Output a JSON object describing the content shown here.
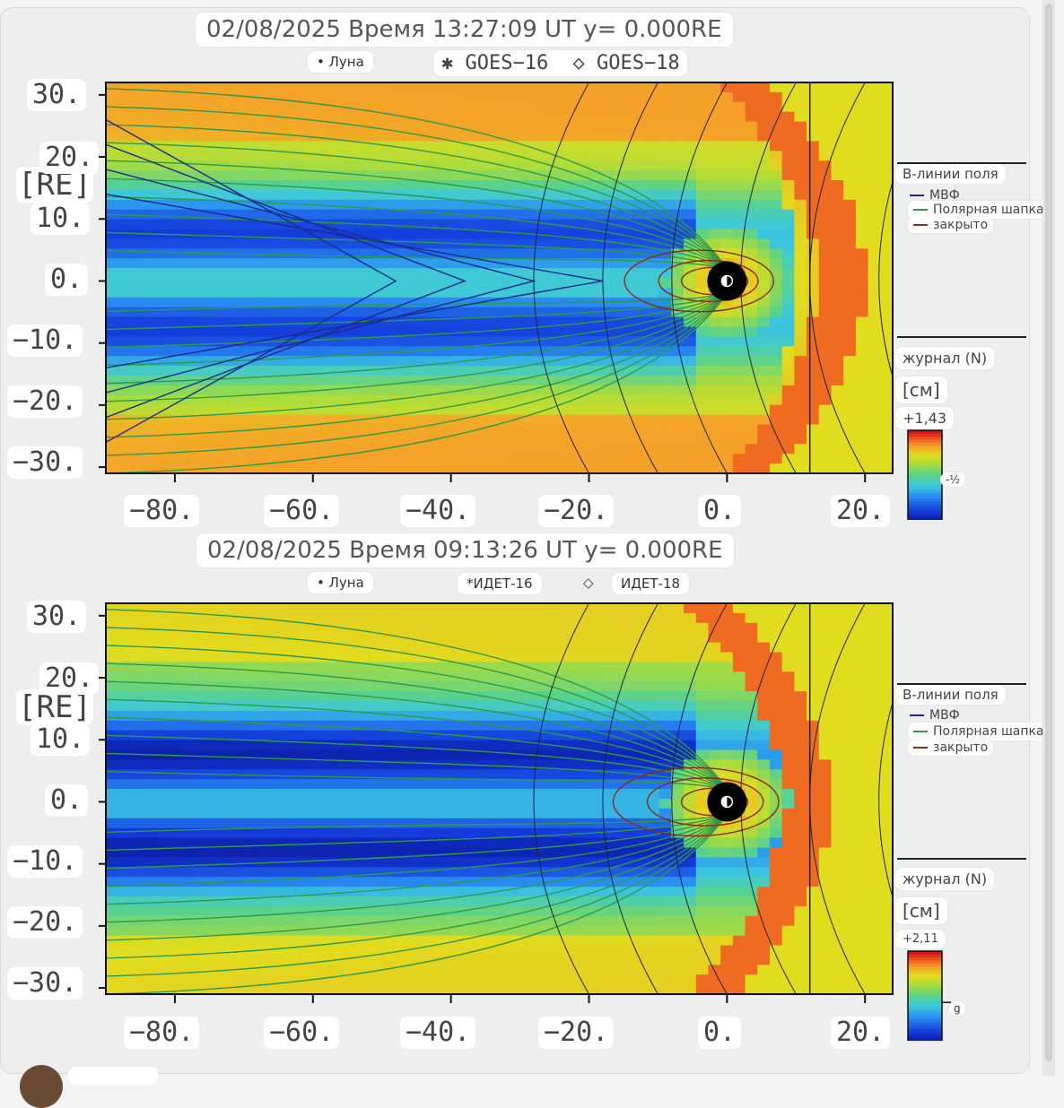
{
  "ui": {
    "scrollbar": "vertical-scrollbar"
  },
  "chart_data": [
    {
      "type": "heatmap",
      "title": "02/08/2025 Время 13:27:09 UT y= 0.000RE",
      "markers": {
        "moon": "• Луна",
        "goes16": "✱ GOES−16",
        "goes18": "◇ GOES−18"
      },
      "xlabel": "",
      "ylabel": "[RE]",
      "x_ticks": [
        "−80.",
        "−60.",
        "−40.",
        "−20.",
        "0.",
        "20."
      ],
      "y_ticks": [
        "30.",
        "20.",
        "10.",
        "0.",
        "−10.",
        "−20.",
        "−30."
      ],
      "xlim": [
        -90,
        24
      ],
      "ylim": [
        -31,
        32
      ],
      "legend": {
        "title": "B-линии поля",
        "items": [
          {
            "label": "МВФ",
            "color": "#1c2a8c"
          },
          {
            "label": "Полярная шапка",
            "color": "#2e9a4a"
          },
          {
            "label": "закрыто",
            "color": "#8c2a1c"
          }
        ]
      },
      "colorbar": {
        "label": "журнал (N)",
        "unit": "[см]",
        "max": "+1,43",
        "mid": "-½"
      },
      "field": {
        "magnetopause_nose_x": 10,
        "bow_shock_nose_x": 16,
        "tail_core_level": 0.1,
        "equatorial_low": 0.05
      },
      "lines": {
        "imf": [
          {
            "x0": -70,
            "y_half": 26
          },
          {
            "x0": -60,
            "y_half": 22
          },
          {
            "x0": -50,
            "y_half": 18
          },
          {
            "x0": -40,
            "y_half": 14
          }
        ],
        "closed": [
          4,
          6,
          9
        ],
        "vertical_x": 12,
        "vertical_label": ""
      },
      "variant": "a"
    },
    {
      "type": "heatmap",
      "title": "02/08/2025 Время 09:13:26 UT y= 0.000RE",
      "markers": {
        "moon": "• Луна",
        "goes16": "*ИДЕТ-16",
        "goes18_symbol": "◇",
        "goes18": "ИДЕТ-18"
      },
      "xlabel": "",
      "ylabel": "[RE]",
      "x_ticks": [
        "−80.",
        "−60.",
        "−40.",
        "−20.",
        "0.",
        "20."
      ],
      "y_ticks": [
        "30.",
        "20.",
        "10.",
        "0.",
        "−10.",
        "−20.",
        "−30."
      ],
      "xlim": [
        -90,
        24
      ],
      "ylim": [
        -31,
        32
      ],
      "legend": {
        "title": "B-линии поля",
        "items": [
          {
            "label": "МВФ",
            "color": "#1c2a8c"
          },
          {
            "label": "Полярная шапка",
            "color": "#2e9a4a"
          },
          {
            "label": "закрыто",
            "color": "#8c2a1c"
          }
        ]
      },
      "colorbar": {
        "label": "журнал (N)",
        "unit": "[см]",
        "max": "+2,11",
        "mid": "g"
      },
      "field": {
        "magnetopause_nose_x": 8,
        "bow_shock_nose_x": 11,
        "tail_core_level": 0.02,
        "equatorial_low": 0.0
      },
      "lines": {
        "imf": [],
        "closed": [
          4,
          7,
          10
        ],
        "vertical_x": 12,
        "vertical_label": ""
      },
      "variant": "b"
    }
  ]
}
